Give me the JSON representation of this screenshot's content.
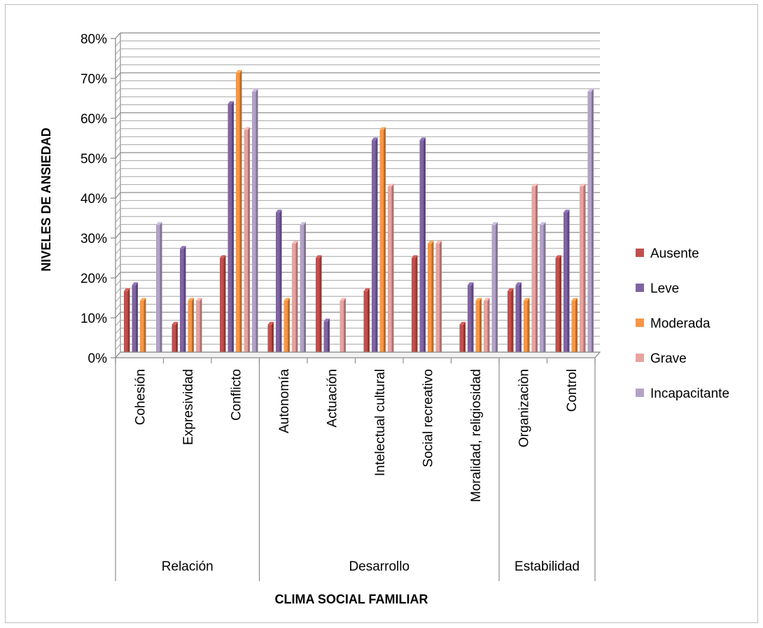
{
  "chart_data": {
    "type": "bar",
    "title": "",
    "ylabel": "NIVELES DE ANSIEDAD",
    "xlabel": "CLIMA SOCIAL FAMILIAR",
    "ylim": [
      0,
      80
    ],
    "y_ticks": [
      "0%",
      "10%",
      "20%",
      "30%",
      "40%",
      "50%",
      "60%",
      "70%",
      "80%"
    ],
    "grid": true,
    "legend_position": "right",
    "groups": [
      {
        "label": "Relación",
        "count": 3
      },
      {
        "label": "Desarrollo",
        "count": 5
      },
      {
        "label": "Estabilidad",
        "count": 2
      }
    ],
    "categories": [
      "Cohesión",
      "Expresividad",
      "Conflicto",
      "Autonomía",
      "Actuación",
      "Intelectual cultural",
      "Social recreativo",
      "Moralidad, religiosidad",
      "Organizaciòn",
      "Control"
    ],
    "series": [
      {
        "name": "Ausente",
        "color": "#c0504d",
        "values": [
          16.7,
          8.3,
          25.0,
          8.3,
          25.0,
          16.7,
          25.0,
          8.3,
          16.7,
          25.0
        ]
      },
      {
        "name": "Leve",
        "color": "#8064a2",
        "values": [
          18.2,
          27.3,
          63.6,
          36.4,
          9.1,
          54.5,
          54.5,
          18.2,
          18.2,
          36.4
        ]
      },
      {
        "name": "Moderada",
        "color": "#f79646",
        "values": [
          14.3,
          14.3,
          71.4,
          14.3,
          0,
          57.1,
          28.6,
          14.3,
          14.3,
          14.3
        ]
      },
      {
        "name": "Grave",
        "color": "#e6a3a0",
        "values": [
          0,
          14.3,
          57.1,
          28.6,
          14.3,
          42.9,
          28.6,
          14.3,
          42.9,
          42.9
        ]
      },
      {
        "name": "Incapacitante",
        "color": "#b3a2c7",
        "values": [
          33.3,
          0,
          66.7,
          33.3,
          0,
          0,
          0,
          33.3,
          33.3,
          66.7
        ]
      }
    ]
  }
}
